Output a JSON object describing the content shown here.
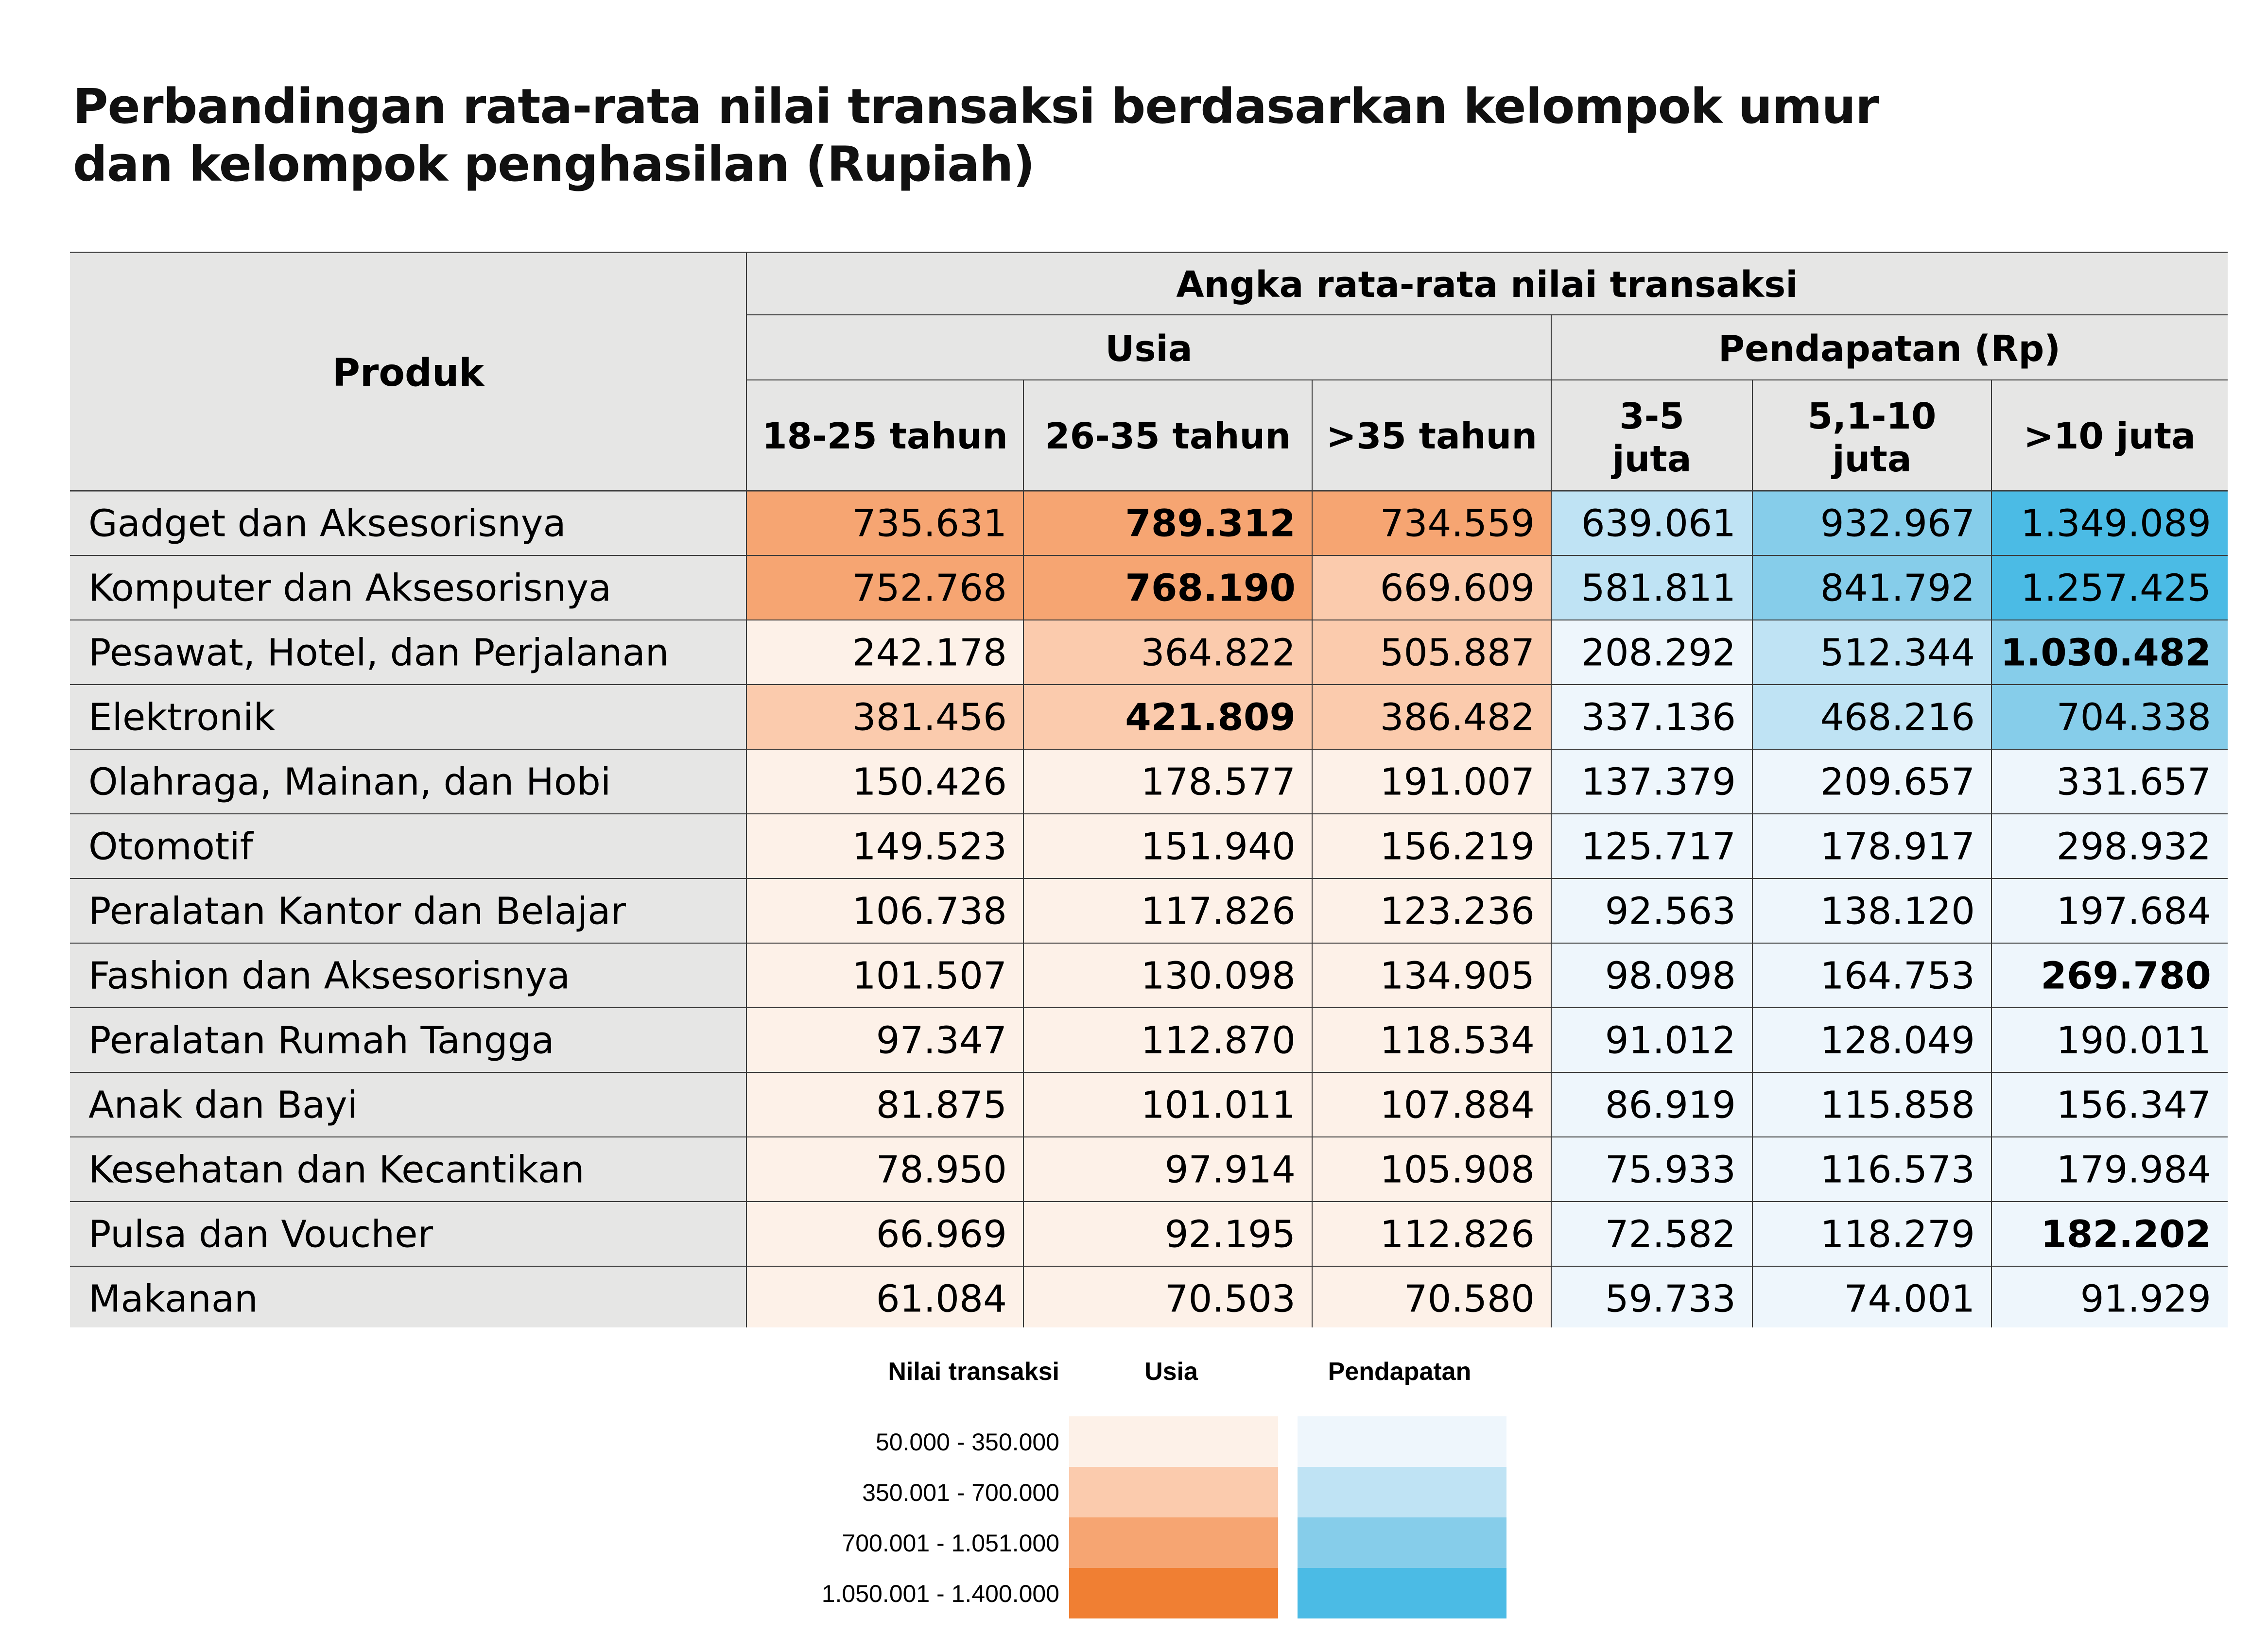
{
  "chart_data": {
    "type": "table",
    "title_lines": [
      "Perbandingan rata-rata nilai transaksi berdasarkan kelompok umur",
      "dan kelompok penghasilan (Rupiah)"
    ],
    "row_header": "Produk",
    "super_header": "Angka rata-rata nilai transaksi",
    "groups": [
      {
        "name": "Usia",
        "columns": [
          "18-25 tahun",
          "26-35 tahun",
          ">35 tahun"
        ]
      },
      {
        "name": "Pendapatan (Rp)",
        "columns": [
          "3-5 juta",
          "5,1-10 juta",
          ">10 juta"
        ]
      }
    ],
    "rows": [
      {
        "product": "Gadget dan Aksesorisnya",
        "values": [
          "735.631",
          "789.312",
          "734.559",
          "639.061",
          "932.967",
          "1.349.089"
        ],
        "bold": [
          1
        ]
      },
      {
        "product": "Komputer dan Aksesorisnya",
        "values": [
          "752.768",
          "768.190",
          "669.609",
          "581.811",
          "841.792",
          "1.257.425"
        ],
        "bold": [
          1
        ]
      },
      {
        "product": "Pesawat, Hotel, dan Perjalanan",
        "values": [
          "242.178",
          "364.822",
          "505.887",
          "208.292",
          "512.344",
          "1.030.482"
        ],
        "bold": [
          5
        ]
      },
      {
        "product": "Elektronik",
        "values": [
          "381.456",
          "421.809",
          "386.482",
          "337.136",
          "468.216",
          "704.338"
        ],
        "bold": [
          1
        ]
      },
      {
        "product": "Olahraga, Mainan, dan Hobi",
        "values": [
          "150.426",
          "178.577",
          "191.007",
          "137.379",
          "209.657",
          "331.657"
        ],
        "bold": []
      },
      {
        "product": "Otomotif",
        "values": [
          "149.523",
          "151.940",
          "156.219",
          "125.717",
          "178.917",
          "298.932"
        ],
        "bold": []
      },
      {
        "product": "Peralatan Kantor dan Belajar",
        "values": [
          "106.738",
          "117.826",
          "123.236",
          "92.563",
          "138.120",
          "197.684"
        ],
        "bold": []
      },
      {
        "product": "Fashion dan Aksesorisnya",
        "values": [
          "101.507",
          "130.098",
          "134.905",
          "98.098",
          "164.753",
          "269.780"
        ],
        "bold": [
          5
        ]
      },
      {
        "product": "Peralatan Rumah Tangga",
        "values": [
          "97.347",
          "112.870",
          "118.534",
          "91.012",
          "128.049",
          "190.011"
        ],
        "bold": []
      },
      {
        "product": "Anak dan Bayi",
        "values": [
          "81.875",
          "101.011",
          "107.884",
          "86.919",
          "115.858",
          "156.347"
        ],
        "bold": []
      },
      {
        "product": "Kesehatan dan Kecantikan",
        "values": [
          "78.950",
          "97.914",
          "105.908",
          "75.933",
          "116.573",
          "179.984"
        ],
        "bold": []
      },
      {
        "product": "Pulsa dan Voucher",
        "values": [
          "66.969",
          "92.195",
          "112.826",
          "72.582",
          "118.279",
          "182.202"
        ],
        "bold": [
          5
        ]
      },
      {
        "product": "Makanan",
        "values": [
          "61.084",
          "70.503",
          "70.580",
          "59.733",
          "74.001",
          "91.929"
        ],
        "bold": []
      }
    ],
    "legend": {
      "title": "Nilai transaksi",
      "series": [
        "Usia",
        "Pendapatan"
      ],
      "bins": [
        {
          "label": "50.000 - 350.000",
          "min": 50000,
          "max": 350000
        },
        {
          "label": "350.001 - 700.000",
          "min": 350001,
          "max": 700000
        },
        {
          "label": "700.001 - 1.051.000",
          "min": 700001,
          "max": 1051000
        },
        {
          "label": "1.050.001 - 1.400.000",
          "min": 1050001,
          "max": 1400000
        }
      ],
      "colors": {
        "Usia": [
          "#fdf1e8",
          "#fbcbad",
          "#f6a572",
          "#f07f33"
        ],
        "Pendapatan": [
          "#eef6fc",
          "#bfe3f4",
          "#86cdea",
          "#4bbbe5"
        ]
      }
    },
    "header_fill": "#e6e6e5",
    "product_fill": "#e6e6e5"
  }
}
